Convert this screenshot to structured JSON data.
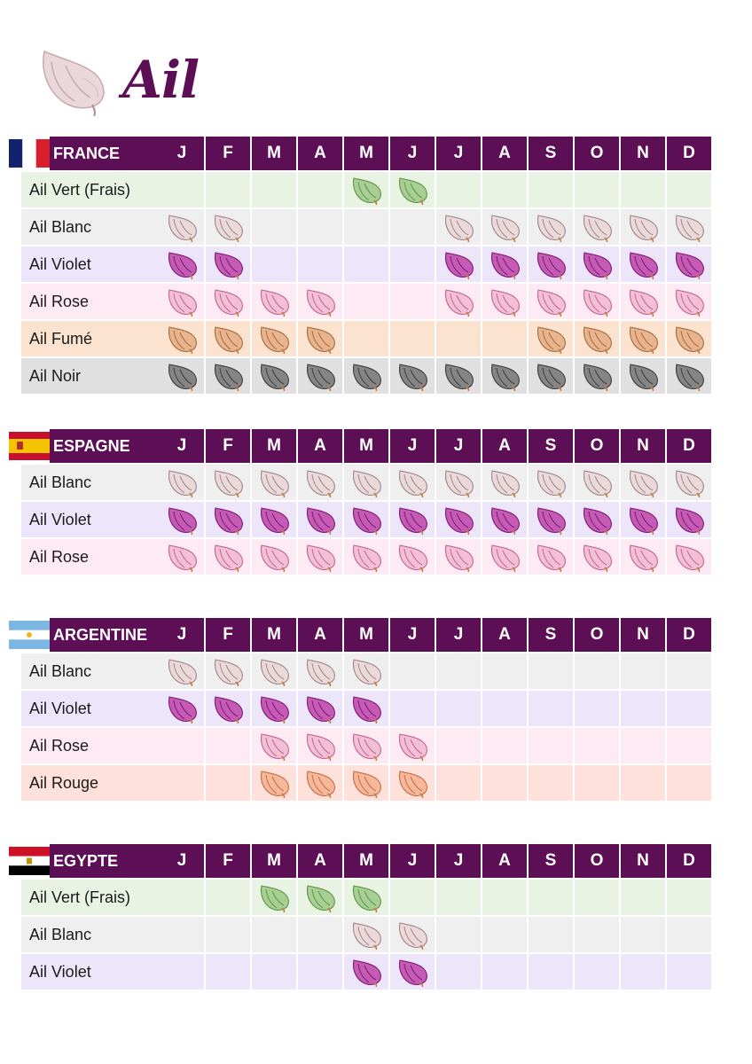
{
  "title": "Ail",
  "months": [
    "J",
    "F",
    "M",
    "A",
    "M",
    "J",
    "J",
    "A",
    "S",
    "O",
    "N",
    "D"
  ],
  "colors": {
    "header": "#5c0f55",
    "varieties": {
      "vert": {
        "row": "#e9f3e3",
        "clove": "#a7cf93",
        "stroke": "#5f9447"
      },
      "blanc": {
        "row": "#efefef",
        "clove": "#ebd9da",
        "stroke": "#a08588"
      },
      "violet": {
        "row": "#ede5fa",
        "clove": "#c55bb4",
        "stroke": "#7d1a73"
      },
      "rose": {
        "row": "#fdeaf3",
        "clove": "#f2bfd6",
        "stroke": "#c0658f"
      },
      "fume": {
        "row": "#fbe3d0",
        "clove": "#e8b48d",
        "stroke": "#a66a3e"
      },
      "noir": {
        "row": "#e0e0e0",
        "clove": "#858585",
        "stroke": "#3c3c3c"
      },
      "rouge": {
        "row": "#fde1da",
        "clove": "#f5b89b",
        "stroke": "#c76b44"
      }
    }
  },
  "sections": [
    {
      "country": "FRANCE",
      "flag": "france-flag-icon",
      "rows": [
        {
          "label": "Ail Vert (Frais)",
          "variety": "vert",
          "months": [
            0,
            0,
            0,
            0,
            1,
            1,
            0,
            0,
            0,
            0,
            0,
            0
          ]
        },
        {
          "label": "Ail Blanc",
          "variety": "blanc",
          "months": [
            1,
            1,
            0,
            0,
            0,
            0,
            1,
            1,
            1,
            1,
            1,
            1
          ]
        },
        {
          "label": "Ail Violet",
          "variety": "violet",
          "months": [
            1,
            1,
            0,
            0,
            0,
            0,
            1,
            1,
            1,
            1,
            1,
            1
          ]
        },
        {
          "label": "Ail Rose",
          "variety": "rose",
          "months": [
            1,
            1,
            1,
            1,
            0,
            0,
            1,
            1,
            1,
            1,
            1,
            1
          ]
        },
        {
          "label": "Ail Fumé",
          "variety": "fume",
          "months": [
            1,
            1,
            1,
            1,
            0,
            0,
            0,
            0,
            1,
            1,
            1,
            1
          ]
        },
        {
          "label": "Ail Noir",
          "variety": "noir",
          "months": [
            1,
            1,
            1,
            1,
            1,
            1,
            1,
            1,
            1,
            1,
            1,
            1
          ]
        }
      ]
    },
    {
      "country": "ESPAGNE",
      "flag": "spain-flag-icon",
      "rows": [
        {
          "label": "Ail Blanc",
          "variety": "blanc",
          "months": [
            1,
            1,
            1,
            1,
            1,
            1,
            1,
            1,
            1,
            1,
            1,
            1
          ]
        },
        {
          "label": "Ail Violet",
          "variety": "violet",
          "months": [
            1,
            1,
            1,
            1,
            1,
            1,
            1,
            1,
            1,
            1,
            1,
            1
          ]
        },
        {
          "label": "Ail Rose",
          "variety": "rose",
          "months": [
            1,
            1,
            1,
            1,
            1,
            1,
            1,
            1,
            1,
            1,
            1,
            1
          ]
        }
      ]
    },
    {
      "country": "ARGENTINE",
      "flag": "argentina-flag-icon",
      "rows": [
        {
          "label": "Ail Blanc",
          "variety": "blanc",
          "months": [
            1,
            1,
            1,
            1,
            1,
            0,
            0,
            0,
            0,
            0,
            0,
            0
          ]
        },
        {
          "label": "Ail Violet",
          "variety": "violet",
          "months": [
            1,
            1,
            1,
            1,
            1,
            0,
            0,
            0,
            0,
            0,
            0,
            0
          ]
        },
        {
          "label": "Ail Rose",
          "variety": "rose",
          "months": [
            0,
            0,
            1,
            1,
            1,
            1,
            0,
            0,
            0,
            0,
            0,
            0
          ]
        },
        {
          "label": "Ail Rouge",
          "variety": "rouge",
          "months": [
            0,
            0,
            1,
            1,
            1,
            1,
            0,
            0,
            0,
            0,
            0,
            0
          ]
        }
      ]
    },
    {
      "country": "EGYPTE",
      "flag": "egypt-flag-icon",
      "rows": [
        {
          "label": "Ail Vert (Frais)",
          "variety": "vert",
          "months": [
            0,
            0,
            1,
            1,
            1,
            0,
            0,
            0,
            0,
            0,
            0,
            0
          ]
        },
        {
          "label": "Ail Blanc",
          "variety": "blanc",
          "months": [
            0,
            0,
            0,
            0,
            1,
            1,
            0,
            0,
            0,
            0,
            0,
            0
          ]
        },
        {
          "label": "Ail Violet",
          "variety": "violet",
          "months": [
            0,
            0,
            0,
            0,
            1,
            1,
            0,
            0,
            0,
            0,
            0,
            0
          ]
        }
      ]
    }
  ]
}
